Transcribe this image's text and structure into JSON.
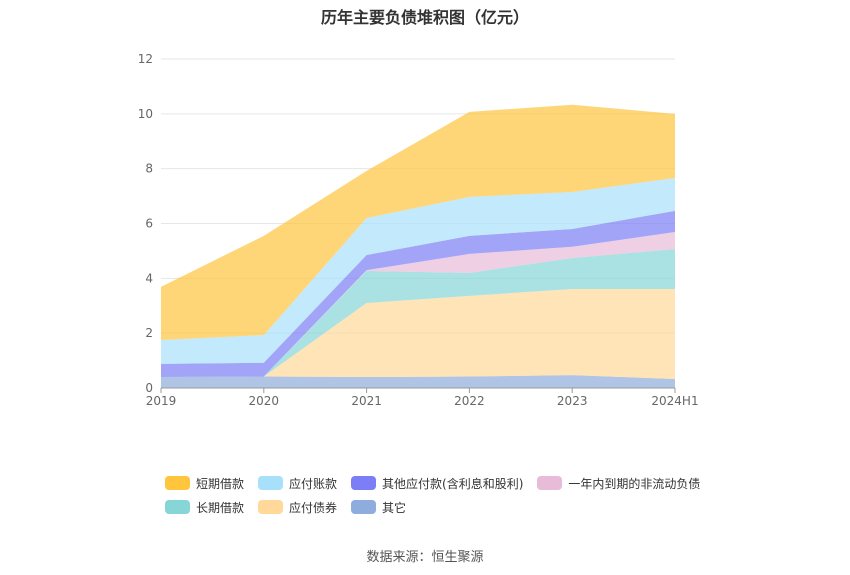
{
  "chart_data": {
    "type": "area",
    "stacked": true,
    "title": "历年主要负债堆积图（亿元）",
    "categories": [
      "2019",
      "2020",
      "2021",
      "2022",
      "2023",
      "2024H1"
    ],
    "ylim": [
      0,
      12
    ],
    "yticks": [
      0,
      2,
      4,
      6,
      8,
      10,
      12
    ],
    "grid": true,
    "legend_position": "bottom",
    "series": [
      {
        "name": "其它",
        "color": "#8FADDC",
        "values": [
          0.4,
          0.42,
          0.4,
          0.42,
          0.47,
          0.33
        ]
      },
      {
        "name": "应付债券",
        "color": "#FFD89A",
        "values": [
          0,
          0,
          2.7,
          2.94,
          3.14,
          3.28
        ]
      },
      {
        "name": "长期借款",
        "color": "#86D6D8",
        "values": [
          0,
          0,
          1.17,
          0.84,
          1.13,
          1.46
        ]
      },
      {
        "name": "一年内到期的非流动负债",
        "color": "#E8BBD8",
        "values": [
          0,
          0,
          0.03,
          0.69,
          0.41,
          0.62
        ]
      },
      {
        "name": "其他应付款(含利息和股利)",
        "color": "#7B7EF5",
        "values": [
          0.48,
          0.5,
          0.55,
          0.66,
          0.65,
          0.77
        ]
      },
      {
        "name": "应付账款",
        "color": "#A8E0FB",
        "values": [
          0.87,
          1.01,
          1.35,
          1.42,
          1.35,
          1.2
        ]
      },
      {
        "name": "短期借款",
        "color": "#FFC53D",
        "values": [
          1.94,
          3.62,
          1.72,
          3.1,
          3.18,
          2.34
        ]
      }
    ],
    "legend_order": [
      "短期借款",
      "应付账款",
      "其他应付款(含利息和股利)",
      "一年内到期的非流动负债",
      "长期借款",
      "应付债券",
      "其它"
    ]
  },
  "source": "数据来源：恒生聚源"
}
